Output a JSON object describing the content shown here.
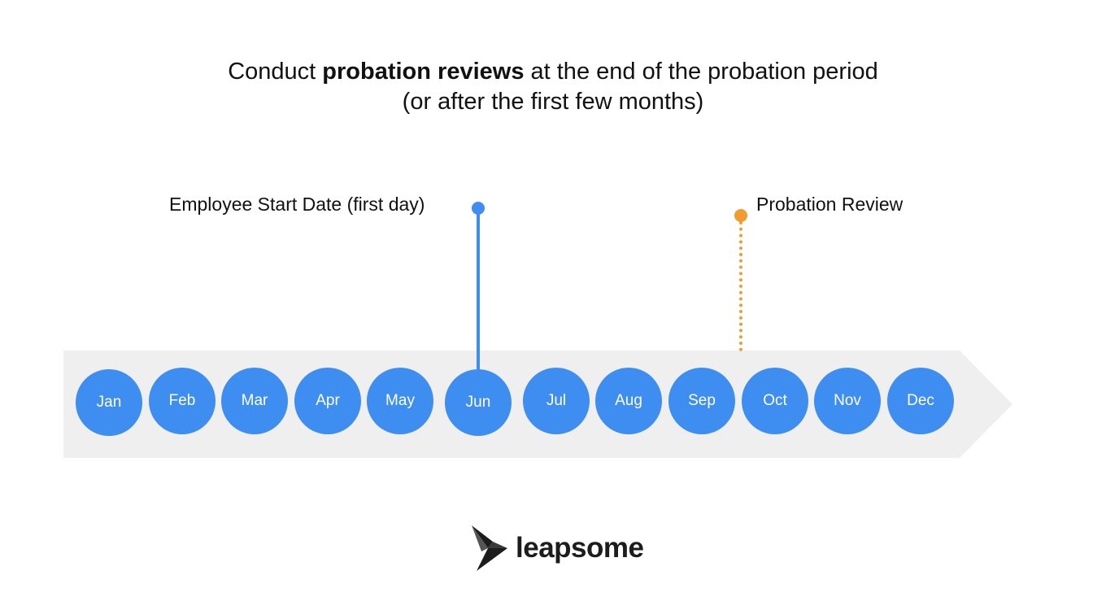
{
  "title": {
    "part1": "Conduct ",
    "bold": "probation reviews",
    "part2": " at the end of the probation period",
    "line2": "(or after the first few months)"
  },
  "markers": {
    "start": {
      "label": "Employee Start Date (first day)",
      "month": "Jun",
      "style": "solid",
      "color": "#3d8ef0"
    },
    "review": {
      "label": "Probation Review",
      "month": "Sep–Oct",
      "style": "dotted",
      "color": "#f39b2f"
    }
  },
  "timeline": {
    "months": [
      "Jan",
      "Feb",
      "Mar",
      "Apr",
      "May",
      "Jun",
      "Jul",
      "Aug",
      "Sep",
      "Oct",
      "Nov",
      "Dec"
    ],
    "circle_color": "#3d8ef0",
    "band_color": "#efefef"
  },
  "logo": {
    "text": "leapsome",
    "icon": "bird-icon"
  }
}
